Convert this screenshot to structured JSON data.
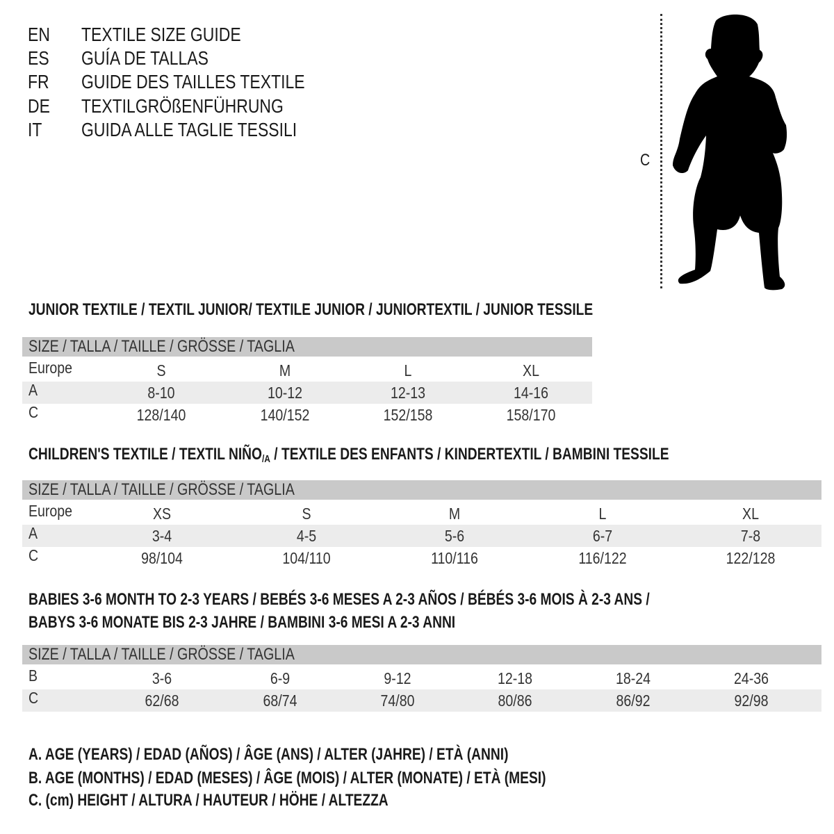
{
  "titles": [
    {
      "code": "EN",
      "text": "TEXTILE SIZE GUIDE"
    },
    {
      "code": "ES",
      "text": "GUÍA DE TALLAS"
    },
    {
      "code": "FR",
      "text": "GUIDE DES TAILLES TEXTILE"
    },
    {
      "code": "DE",
      "text": "TEXTILGRÖßENFÜHRUNG"
    },
    {
      "code": "IT",
      "text": "GUIDA ALLE TAGLIE TESSILI"
    }
  ],
  "figure": {
    "measure_label": "C",
    "icon": "child-silhouette-icon"
  },
  "size_header": "SIZE / TALLA / TAILLE / GRÖSSE / TAGLIA",
  "junior": {
    "heading": "JUNIOR TEXTILE / TEXTIL JUNIOR/ TEXTILE JUNIOR / JUNIORTEXTIL / JUNIOR TESSILE",
    "rows": [
      {
        "label": "Europe",
        "values": [
          "S",
          "M",
          "L",
          "XL"
        ]
      },
      {
        "label": "A",
        "values": [
          "8-10",
          "10-12",
          "12-13",
          "14-16"
        ]
      },
      {
        "label": "C",
        "values": [
          "128/140",
          "140/152",
          "152/158",
          "158/170"
        ]
      }
    ]
  },
  "children": {
    "heading_pre": "CHILDREN'S TEXTILE / TEXTIL NIÑO",
    "heading_sub": "/A",
    "heading_post": " / TEXTILE DES ENFANTS / KINDERTEXTIL / BAMBINI TESSILE",
    "rows": [
      {
        "label": "Europe",
        "values": [
          "XS",
          "S",
          "M",
          "L",
          "XL"
        ]
      },
      {
        "label": "A",
        "values": [
          "3-4",
          "4-5",
          "5-6",
          "6-7",
          "7-8"
        ]
      },
      {
        "label": "C",
        "values": [
          "98/104",
          "104/110",
          "110/116",
          "116/122",
          "122/128"
        ]
      }
    ]
  },
  "babies": {
    "heading_line1": "BABIES 3-6 MONTH TO 2-3 YEARS / BEBÉS 3-6 MESES A 2-3 AÑOS / BÉBÉS 3-6 MOIS À 2-3 ANS /",
    "heading_line2": "BABYS 3-6 MONATE BIS 2-3 JAHRE / BAMBINI 3-6 MESI A 2-3 ANNI",
    "rows": [
      {
        "label": "B",
        "values": [
          "3-6",
          "6-9",
          "9-12",
          "12-18",
          "18-24",
          "24-36"
        ]
      },
      {
        "label": "C",
        "values": [
          "62/68",
          "68/74",
          "74/80",
          "80/86",
          "86/92",
          "92/98"
        ]
      }
    ]
  },
  "legend": [
    "A. AGE (YEARS) / EDAD (AÑOS) / ÂGE (ANS) / ALTER (JAHRE) / ETÀ (ANNI)",
    "B. AGE (MONTHS) / EDAD (MESES) / ÂGE (MOIS) / ALTER (MONATE) / ETÀ (MESI)",
    "C. (cm) HEIGHT / ALTURA / HAUTEUR / HÖHE / ALTEZZA"
  ],
  "colors": {
    "header_bar": "#c9c9c9",
    "shaded_row": "#ececec",
    "text": "#1a1a1a"
  }
}
